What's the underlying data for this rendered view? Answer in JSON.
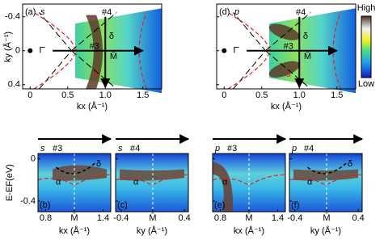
{
  "top_axes": {
    "xlabel": "kx (Å⁻¹)",
    "ylabel": "ky (Å⁻¹)",
    "xlim": [
      -0.1,
      1.75
    ],
    "ylim": [
      -0.55,
      0.45
    ],
    "xticks": [
      0,
      0.5,
      {
        "value": 1,
        "label": "1.0"
      },
      1.5
    ],
    "yticks": [
      0.4,
      0,
      -0.4
    ]
  },
  "top_panels": [
    {
      "tag": "(a)",
      "pol": "s",
      "gamma": "Γ̄",
      "m": "M̄",
      "alpha": "α",
      "delta": "δ",
      "cut3": "#3",
      "cut4": "#4"
    },
    {
      "tag": "(d)",
      "pol": "p",
      "gamma": "Γ̄",
      "m": "M̄",
      "alpha": "α",
      "delta": "δ",
      "cut3": "#3",
      "cut4": "#4"
    }
  ],
  "colorbar": {
    "high": "High",
    "low": "Low"
  },
  "bottom_axis": {
    "ylabel": "E-EF(eV)",
    "ylim": [
      0.05,
      -0.5
    ],
    "yticks": [
      0,
      -0.4
    ]
  },
  "bottom_panels": [
    {
      "pol": "s",
      "cut": "#3",
      "tag": "(b)",
      "xlabel": "kx (Å⁻¹)",
      "xlim": [
        0.72,
        1.48
      ],
      "xticks": [
        0.8,
        {
          "value": 1.1,
          "label": "M̄"
        },
        1.4
      ],
      "labels": [
        "α",
        "δ"
      ]
    },
    {
      "pol": "s",
      "cut": "#4",
      "tag": "(c)",
      "xlabel": "ky (Å⁻¹)",
      "xlim": [
        -0.47,
        0.45
      ],
      "xticks": [
        -0.4,
        {
          "value": 0,
          "label": "M̄"
        },
        0.4
      ],
      "labels": [
        "α"
      ]
    },
    {
      "pol": "p",
      "cut": "#3",
      "tag": "(e)",
      "xlabel": "kx (Å⁻¹)",
      "xlim": [
        0.72,
        1.48
      ],
      "xticks": [
        0.8,
        {
          "value": 1.1,
          "label": "M̄"
        },
        1.4
      ],
      "labels": [
        "α"
      ]
    },
    {
      "pol": "p",
      "cut": "#4",
      "tag": "(f)",
      "xlabel": "ky (Å⁻¹)",
      "xlim": [
        -0.47,
        0.45
      ],
      "xticks": [
        -0.4,
        {
          "value": 0,
          "label": "M̄"
        },
        0.4
      ],
      "labels": [
        "α",
        "δ"
      ]
    }
  ]
}
